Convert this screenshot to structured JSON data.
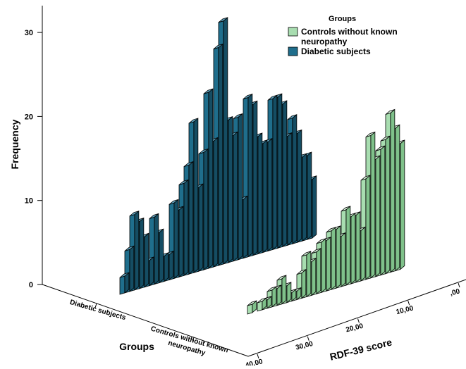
{
  "colors": {
    "diabetic": "#1f6e8c",
    "diabetic_side": "#154d63",
    "diabetic_top": "#5fa3bf",
    "control": "#a8ddb0",
    "control_side": "#7fc18a",
    "control_top": "#d4f0d8"
  },
  "chart_data": {
    "type": "bar",
    "subtype": "3d-histogram",
    "title": "",
    "xlabel": "RDF-39 score",
    "ylabel": "Frequency",
    "zlabel": "Groups",
    "y_ticks": [
      "0",
      "10",
      "20",
      "30"
    ],
    "x_ticks": [
      ",00",
      "10,00",
      "20,00",
      "30,00",
      "40,00"
    ],
    "z_ticks": [
      "Diabetic subjects",
      "Controls without known neuropathy"
    ],
    "ylim": [
      0,
      30
    ],
    "xlim": [
      0,
      40
    ],
    "legend": {
      "title": "Groups",
      "position": "top-right",
      "entries": [
        {
          "label": "Controls without known neuropathy",
          "color_key": "control"
        },
        {
          "label": "Diabetic subjects",
          "color_key": "diabetic"
        }
      ]
    },
    "series": [
      {
        "name": "Diabetic subjects",
        "group_index": 0,
        "x": [
          39,
          38,
          37,
          36,
          35,
          34,
          33,
          32,
          31,
          30,
          29,
          28,
          27,
          26,
          25,
          24,
          23,
          22,
          21,
          20,
          19,
          18,
          17,
          16,
          15,
          14,
          13,
          12,
          11,
          10,
          9,
          8,
          7,
          6,
          5,
          4,
          3,
          2,
          1
        ],
        "values": [
          2,
          5,
          9,
          8,
          6,
          3,
          8,
          6,
          3,
          3,
          9,
          8,
          11,
          13,
          18,
          10,
          14,
          21,
          15,
          26,
          29,
          17,
          15,
          17,
          7,
          19,
          18,
          14,
          13,
          13,
          18,
          18,
          17,
          13,
          15,
          13,
          10,
          10,
          7
        ]
      },
      {
        "name": "Controls without known neuropathy",
        "group_index": 1,
        "x": [
          40,
          38,
          37,
          36,
          35,
          34,
          33,
          32,
          31,
          30,
          29,
          28,
          27,
          26,
          25,
          24,
          23,
          22,
          21,
          20,
          19,
          18,
          17,
          16,
          15,
          14,
          13,
          12,
          11,
          10
        ],
        "values": [
          1,
          1,
          1,
          2,
          2,
          3,
          2,
          1,
          1,
          3,
          5,
          4,
          5,
          6,
          6,
          7,
          7,
          6,
          9,
          8,
          8,
          6,
          12,
          17,
          14,
          15,
          16,
          19,
          17,
          15
        ]
      }
    ]
  }
}
